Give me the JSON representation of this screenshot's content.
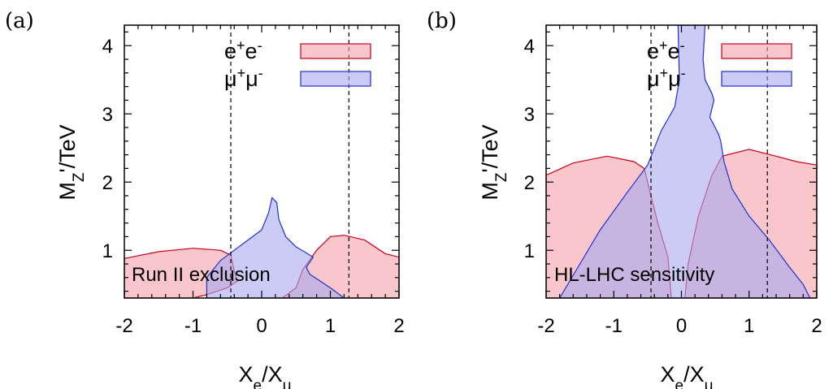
{
  "colors": {
    "ee_fill": "#f4a0a8",
    "ee_stroke": "#c8001e",
    "mumu_fill": "#a8a8f0",
    "mumu_stroke": "#1e32d2"
  },
  "chart_data": [
    {
      "type": "area",
      "panel_label": "(a)",
      "annotation": "Run II exclusion",
      "xlabel": "X",
      "xlabel_sub": "e",
      "xlabel_sep": "/X",
      "xlabel_sub2": "μ",
      "ylabel_main": "M",
      "ylabel_sub": "Z",
      "ylabel_prime": "'",
      "ylabel_unit": "/TeV",
      "xlim": [
        -2,
        2
      ],
      "ylim": [
        0.3,
        4.3
      ],
      "xticks": [
        "-2",
        "-1",
        "0",
        "1",
        "2"
      ],
      "yticks": [
        "1",
        "2",
        "3",
        "4"
      ],
      "legend_position": "top-right",
      "ref_lines_x": [
        -0.45,
        1.27
      ],
      "series": [
        {
          "name": "e+e-",
          "regions": [
            [
              [
                -2.0,
                0.3
              ],
              [
                -2.0,
                0.88
              ],
              [
                -1.5,
                0.98
              ],
              [
                -1.0,
                1.03
              ],
              [
                -0.6,
                1.0
              ],
              [
                -0.45,
                0.93
              ],
              [
                -0.4,
                0.7
              ],
              [
                -0.35,
                0.55
              ],
              [
                -0.5,
                0.45
              ],
              [
                -0.8,
                0.35
              ],
              [
                -1.0,
                0.3
              ]
            ],
            [
              [
                0.3,
                0.3
              ],
              [
                0.5,
                0.45
              ],
              [
                0.6,
                0.72
              ],
              [
                0.8,
                1.0
              ],
              [
                1.0,
                1.2
              ],
              [
                1.2,
                1.22
              ],
              [
                1.5,
                1.15
              ],
              [
                1.8,
                0.95
              ],
              [
                2.0,
                0.9
              ],
              [
                2.0,
                0.3
              ]
            ]
          ]
        },
        {
          "name": "μ+μ-",
          "regions": [
            [
              [
                -0.8,
                0.3
              ],
              [
                -0.8,
                0.6
              ],
              [
                -0.6,
                0.85
              ],
              [
                -0.4,
                1.0
              ],
              [
                -0.2,
                1.15
              ],
              [
                0.0,
                1.3
              ],
              [
                0.1,
                1.55
              ],
              [
                0.15,
                1.77
              ],
              [
                0.22,
                1.7
              ],
              [
                0.25,
                1.45
              ],
              [
                0.35,
                1.2
              ],
              [
                0.5,
                1.05
              ],
              [
                0.62,
                0.98
              ],
              [
                0.75,
                0.9
              ],
              [
                0.65,
                0.75
              ],
              [
                0.7,
                0.65
              ],
              [
                0.85,
                0.55
              ],
              [
                1.0,
                0.45
              ],
              [
                1.2,
                0.3
              ]
            ]
          ]
        }
      ]
    },
    {
      "type": "area",
      "panel_label": "(b)",
      "annotation": "HL-LHC sensitivity",
      "xlabel": "X",
      "xlabel_sub": "e",
      "xlabel_sep": "/X",
      "xlabel_sub2": "μ",
      "ylabel_main": "M",
      "ylabel_sub": "Z",
      "ylabel_prime": "'",
      "ylabel_unit": "/TeV",
      "xlim": [
        -2,
        2
      ],
      "ylim": [
        0.3,
        4.3
      ],
      "xticks": [
        "-2",
        "-1",
        "0",
        "1",
        "2"
      ],
      "yticks": [
        "1",
        "2",
        "3",
        "4"
      ],
      "legend_position": "top-right",
      "ref_lines_x": [
        -0.45,
        1.27
      ],
      "series": [
        {
          "name": "e+e-",
          "regions": [
            [
              [
                -2.0,
                0.3
              ],
              [
                -2.0,
                2.1
              ],
              [
                -1.6,
                2.28
              ],
              [
                -1.1,
                2.38
              ],
              [
                -0.7,
                2.3
              ],
              [
                -0.55,
                2.2
              ],
              [
                -0.45,
                1.8
              ],
              [
                -0.35,
                1.4
              ],
              [
                -0.2,
                0.9
              ],
              [
                -0.15,
                0.3
              ]
            ],
            [
              [
                0.05,
                0.3
              ],
              [
                0.1,
                0.8
              ],
              [
                0.25,
                1.5
              ],
              [
                0.45,
                2.1
              ],
              [
                0.6,
                2.38
              ],
              [
                1.0,
                2.48
              ],
              [
                1.4,
                2.38
              ],
              [
                1.7,
                2.3
              ],
              [
                2.0,
                2.25
              ],
              [
                2.0,
                0.3
              ]
            ]
          ]
        },
        {
          "name": "μ+μ-",
          "regions": [
            [
              [
                -1.8,
                0.3
              ],
              [
                -1.5,
                0.8
              ],
              [
                -1.2,
                1.3
              ],
              [
                -0.8,
                1.85
              ],
              [
                -0.5,
                2.25
              ],
              [
                -0.3,
                2.75
              ],
              [
                -0.1,
                3.1
              ],
              [
                -0.03,
                3.5
              ],
              [
                -0.05,
                4.3
              ],
              [
                0.35,
                4.3
              ],
              [
                0.32,
                3.8
              ],
              [
                0.35,
                3.5
              ],
              [
                0.45,
                3.3
              ],
              [
                0.48,
                3.2
              ],
              [
                0.42,
                2.95
              ],
              [
                0.55,
                2.7
              ],
              [
                0.58,
                2.6
              ],
              [
                0.63,
                2.3
              ],
              [
                0.75,
                1.9
              ],
              [
                1.0,
                1.5
              ],
              [
                1.3,
                1.15
              ],
              [
                1.6,
                0.75
              ],
              [
                1.8,
                0.5
              ],
              [
                1.9,
                0.3
              ],
              [
                -0.05,
                0.3
              ]
            ]
          ]
        }
      ]
    }
  ]
}
